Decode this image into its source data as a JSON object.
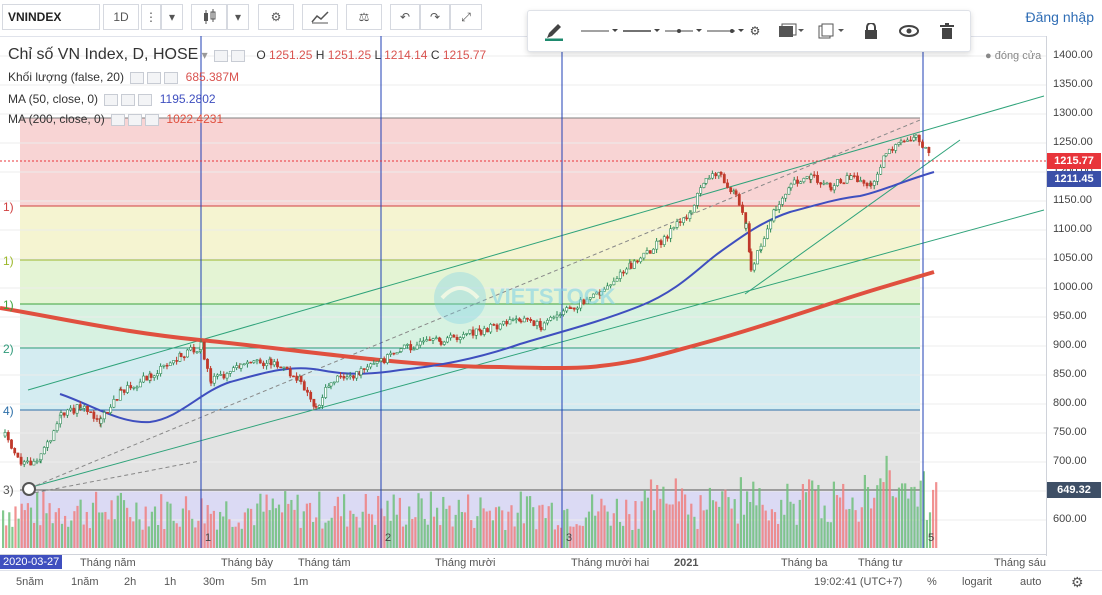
{
  "toolbar": {
    "symbol": "VNINDEX",
    "interval": "1D",
    "login": "Đăng nhập"
  },
  "legend": {
    "title": "Chỉ số VN Index, D, HOSE",
    "ohlc": {
      "o_label": "O",
      "o": "1251.25",
      "h_label": "H",
      "h": "1251.25",
      "l_label": "L",
      "l": "1214.14",
      "c_label": "C",
      "c": "1215.77"
    },
    "volume_label": "Khối lượng (false, 20)",
    "volume_value": "685.387M",
    "ma50_label": "MA (50, close, 0)",
    "ma50_value": "1195.2802",
    "ma200_label": "MA (200, close, 0)",
    "ma200_value": "1022.4231",
    "status": "đóng cửa"
  },
  "price_axis": {
    "ticks": [
      "1400.00",
      "1350.00",
      "1300.00",
      "1250.00",
      "1200.00",
      "1150.00",
      "1100.00",
      "1050.00",
      "1000.00",
      "950.00",
      "900.00",
      "850.00",
      "800.00",
      "750.00",
      "700.00",
      "650.00",
      "600.00"
    ],
    "last_price": "1215.77",
    "ma_price": "1211.45",
    "fib_price": "649.32"
  },
  "fib_labels": [
    "1)",
    "1)",
    "1)",
    "2)",
    "4)",
    "3)"
  ],
  "vline_labels": [
    "1",
    "2",
    "3",
    "5"
  ],
  "time_axis": {
    "start_date": "2020-03-27",
    "ticks": [
      "Tháng năm",
      "Tháng bảy",
      "Tháng tám",
      "Tháng mười",
      "Tháng mười hai",
      "2021",
      "Tháng ba",
      "Tháng tư",
      "Tháng sáu"
    ]
  },
  "watermark": "VIETSTOCK",
  "bottom_bar": {
    "ranges": [
      "5năm",
      "1năm",
      "2h",
      "1h",
      "30m",
      "5m",
      "1m"
    ],
    "time": "19:02:41 (UTC+7)",
    "options": [
      "%",
      "logarit",
      "auto"
    ]
  },
  "colors": {
    "up": "#2e8b57",
    "down": "#d9534f",
    "ma50": "#3f4fbf",
    "ma200": "#e0503f",
    "channel": "#2fa37a",
    "vline": "#1f3fb5",
    "price_tag": "#e8343a",
    "ma_tag": "#3a4fa8",
    "fib_tag": "#3e4f66"
  }
}
